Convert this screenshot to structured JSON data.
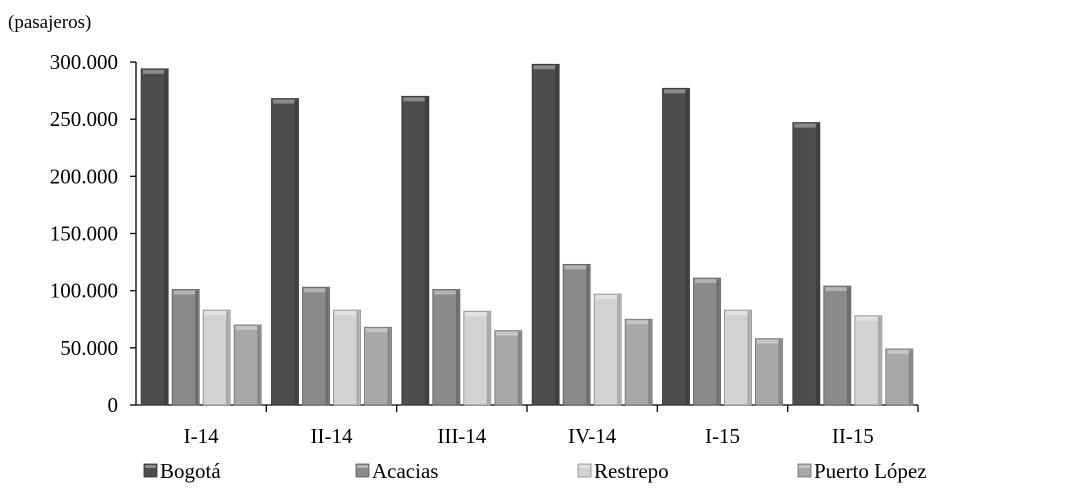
{
  "chart_data": {
    "type": "bar",
    "title": "",
    "ylabel": "(pasajeros)",
    "xlabel": "",
    "categories": [
      "I-14",
      "II-14",
      "III-14",
      "IV-14",
      "I-15",
      "II-15"
    ],
    "series": [
      {
        "name": "Bogotá",
        "color": "#4d4d4d",
        "values": [
          294000,
          268000,
          270000,
          298000,
          277000,
          247000
        ]
      },
      {
        "name": "Acacias",
        "color": "#8a8a8a",
        "values": [
          101000,
          103000,
          101000,
          123000,
          111000,
          104000
        ]
      },
      {
        "name": "Restrepo",
        "color": "#d2d2d2",
        "values": [
          83000,
          83000,
          82000,
          97000,
          83000,
          78000
        ]
      },
      {
        "name": "Puerto López",
        "color": "#a8a8a8",
        "values": [
          70000,
          68000,
          65000,
          75000,
          58000,
          49000
        ]
      }
    ],
    "ylim": [
      0,
      300000
    ],
    "yticks": [
      "0",
      "50.000",
      "100.000",
      "150.000",
      "200.000",
      "250.000",
      "300.000"
    ],
    "grid": false,
    "legend": "bottom"
  }
}
